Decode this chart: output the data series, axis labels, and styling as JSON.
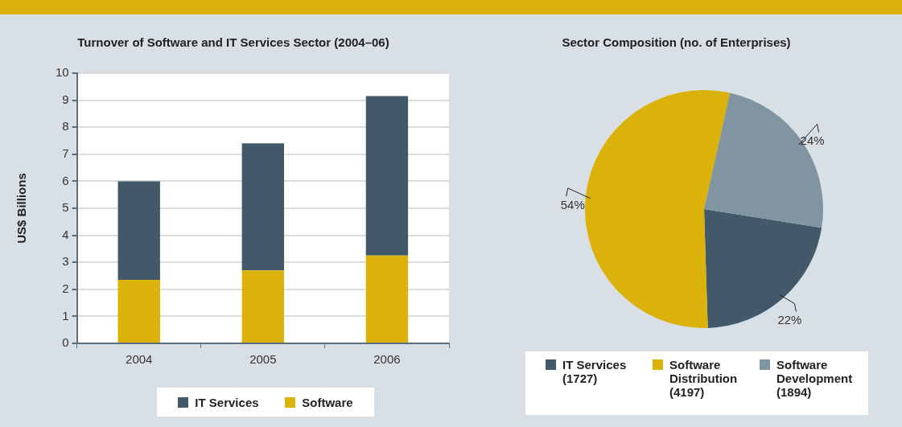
{
  "chart_data": [
    {
      "type": "bar",
      "title": "Turnover of Software and IT Services Sector (2004–06)",
      "ylabel": "US$ Billions",
      "categories": [
        "2004",
        "2005",
        "2006"
      ],
      "stacked": true,
      "series": [
        {
          "name": "Software",
          "color": "#dbb20a",
          "values": [
            2.35,
            2.7,
            3.25
          ]
        },
        {
          "name": "IT Services",
          "color": "#42596a",
          "values": [
            3.65,
            4.7,
            5.9
          ]
        }
      ],
      "ylim": [
        0,
        10
      ],
      "yticks": [
        0,
        1,
        2,
        3,
        4,
        5,
        6,
        7,
        8,
        9,
        10
      ],
      "grid": "y",
      "legend": "bottom"
    },
    {
      "type": "pie",
      "title": "Sector Composition (no. of Enterprises)",
      "categories": [
        "IT Services (1727)",
        "Software Distribution (4197)",
        "Software Development (1894)"
      ],
      "values": [
        22,
        54,
        24
      ],
      "colors": [
        "#42596a",
        "#dbb20a",
        "#8094a1"
      ],
      "value_labels": [
        "22%",
        "54%",
        "24%"
      ],
      "legend": "bottom"
    }
  ]
}
